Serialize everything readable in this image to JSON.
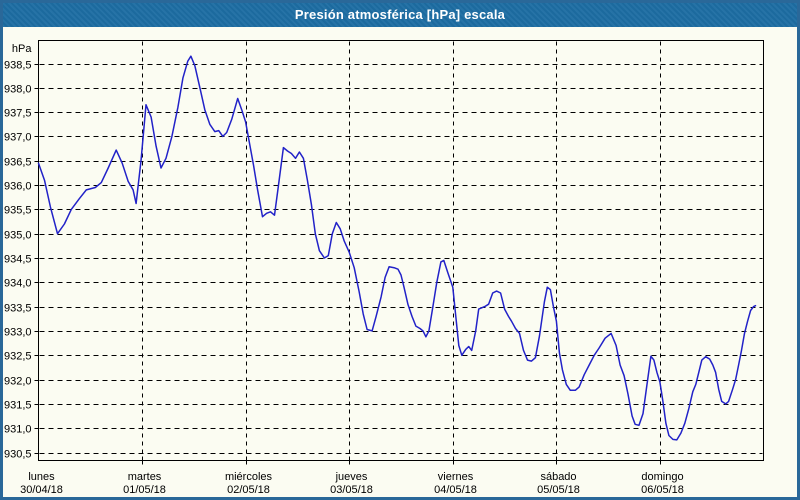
{
  "window": {
    "title": "Presión atmosférica [hPa] escala"
  },
  "colors": {
    "titlebar_bg": "#1D6DA3",
    "window_border": "#2A6899",
    "chart_bg": "#FBFCF2",
    "line": "#2222C8",
    "grid": "#000000",
    "text": "#000000",
    "title_text": "#FFFFFF"
  },
  "chart_data": {
    "type": "line",
    "title": "Presión atmosférica [hPa] escala",
    "y_unit_label": "hPa",
    "ylabel": "hPa",
    "xlabel": "",
    "grid": "dashed",
    "legend_position": "none",
    "ylim": [
      930.5,
      938.5
    ],
    "y_tick_step": 0.5,
    "y_ticks": [
      {
        "value": 938.5,
        "label": "938,5"
      },
      {
        "value": 938.0,
        "label": "938,0"
      },
      {
        "value": 937.5,
        "label": "937,5"
      },
      {
        "value": 937.0,
        "label": "937,0"
      },
      {
        "value": 936.5,
        "label": "936,5"
      },
      {
        "value": 936.0,
        "label": "936,0"
      },
      {
        "value": 935.5,
        "label": "935,5"
      },
      {
        "value": 935.0,
        "label": "935,0"
      },
      {
        "value": 934.5,
        "label": "934,5"
      },
      {
        "value": 934.0,
        "label": "934,0"
      },
      {
        "value": 933.5,
        "label": "933,5"
      },
      {
        "value": 933.0,
        "label": "933,0"
      },
      {
        "value": 932.5,
        "label": "932,5"
      },
      {
        "value": 932.0,
        "label": "932,0"
      },
      {
        "value": 931.5,
        "label": "931,5"
      },
      {
        "value": 931.0,
        "label": "931,0"
      },
      {
        "value": 930.5,
        "label": "930,5"
      }
    ],
    "x_days": [
      {
        "name": "lunes",
        "date": "30/04/18"
      },
      {
        "name": "martes",
        "date": "01/05/18"
      },
      {
        "name": "miércoles",
        "date": "02/05/18"
      },
      {
        "name": "jueves",
        "date": "03/05/18"
      },
      {
        "name": "viernes",
        "date": "04/05/18"
      },
      {
        "name": "sábado",
        "date": "05/05/18"
      },
      {
        "name": "domingo",
        "date": "06/05/18"
      }
    ],
    "x_span_days": 7,
    "series": [
      {
        "name": "Presión atmosférica",
        "unit": "hPa",
        "points": [
          [
            0.0,
            936.45
          ],
          [
            0.058,
            936.1
          ],
          [
            0.115,
            935.55
          ],
          [
            0.183,
            935.0
          ],
          [
            0.25,
            935.2
          ],
          [
            0.317,
            935.5
          ],
          [
            0.394,
            935.72
          ],
          [
            0.462,
            935.9
          ],
          [
            0.548,
            935.95
          ],
          [
            0.606,
            936.05
          ],
          [
            0.673,
            936.35
          ],
          [
            0.75,
            936.72
          ],
          [
            0.808,
            936.45
          ],
          [
            0.865,
            936.08
          ],
          [
            0.913,
            935.9
          ],
          [
            0.942,
            935.62
          ],
          [
            0.99,
            936.5
          ],
          [
            1.038,
            937.65
          ],
          [
            1.087,
            937.4
          ],
          [
            1.135,
            936.8
          ],
          [
            1.183,
            936.35
          ],
          [
            1.231,
            936.55
          ],
          [
            1.288,
            937.0
          ],
          [
            1.346,
            937.6
          ],
          [
            1.394,
            938.2
          ],
          [
            1.442,
            938.55
          ],
          [
            1.471,
            938.65
          ],
          [
            1.51,
            938.45
          ],
          [
            1.558,
            938.0
          ],
          [
            1.606,
            937.55
          ],
          [
            1.654,
            937.25
          ],
          [
            1.702,
            937.1
          ],
          [
            1.74,
            937.12
          ],
          [
            1.779,
            937.0
          ],
          [
            1.817,
            937.08
          ],
          [
            1.865,
            937.35
          ],
          [
            1.923,
            937.78
          ],
          [
            1.962,
            937.55
          ],
          [
            2.0,
            937.3
          ],
          [
            2.038,
            936.85
          ],
          [
            2.077,
            936.4
          ],
          [
            2.115,
            935.9
          ],
          [
            2.163,
            935.35
          ],
          [
            2.202,
            935.42
          ],
          [
            2.24,
            935.45
          ],
          [
            2.279,
            935.38
          ],
          [
            2.317,
            936.0
          ],
          [
            2.365,
            936.77
          ],
          [
            2.404,
            936.7
          ],
          [
            2.442,
            936.65
          ],
          [
            2.481,
            936.55
          ],
          [
            2.519,
            936.68
          ],
          [
            2.558,
            936.55
          ],
          [
            2.596,
            936.1
          ],
          [
            2.635,
            935.6
          ],
          [
            2.673,
            935.0
          ],
          [
            2.712,
            934.65
          ],
          [
            2.76,
            934.5
          ],
          [
            2.798,
            934.55
          ],
          [
            2.837,
            935.0
          ],
          [
            2.875,
            935.23
          ],
          [
            2.913,
            935.1
          ],
          [
            2.952,
            934.85
          ],
          [
            3.0,
            934.62
          ],
          [
            3.048,
            934.3
          ],
          [
            3.096,
            933.8
          ],
          [
            3.135,
            933.35
          ],
          [
            3.173,
            933.03
          ],
          [
            3.221,
            933.0
          ],
          [
            3.26,
            933.3
          ],
          [
            3.308,
            933.7
          ],
          [
            3.346,
            934.1
          ],
          [
            3.385,
            934.32
          ],
          [
            3.433,
            934.3
          ],
          [
            3.471,
            934.27
          ],
          [
            3.5,
            934.15
          ],
          [
            3.529,
            933.9
          ],
          [
            3.567,
            933.55
          ],
          [
            3.606,
            933.3
          ],
          [
            3.644,
            933.1
          ],
          [
            3.683,
            933.05
          ],
          [
            3.712,
            933.0
          ],
          [
            3.74,
            932.88
          ],
          [
            3.769,
            933.0
          ],
          [
            3.808,
            933.5
          ],
          [
            3.846,
            934.0
          ],
          [
            3.885,
            934.42
          ],
          [
            3.913,
            934.45
          ],
          [
            3.952,
            934.2
          ],
          [
            4.0,
            933.9
          ],
          [
            4.029,
            933.3
          ],
          [
            4.058,
            932.7
          ],
          [
            4.087,
            932.5
          ],
          [
            4.125,
            932.62
          ],
          [
            4.154,
            932.68
          ],
          [
            4.183,
            932.6
          ],
          [
            4.221,
            933.0
          ],
          [
            4.25,
            933.45
          ],
          [
            4.308,
            933.5
          ],
          [
            4.346,
            933.55
          ],
          [
            4.385,
            933.78
          ],
          [
            4.423,
            933.82
          ],
          [
            4.462,
            933.78
          ],
          [
            4.5,
            933.45
          ],
          [
            4.538,
            933.3
          ],
          [
            4.567,
            933.2
          ],
          [
            4.606,
            933.05
          ],
          [
            4.644,
            932.95
          ],
          [
            4.683,
            932.6
          ],
          [
            4.721,
            932.4
          ],
          [
            4.76,
            932.38
          ],
          [
            4.798,
            932.45
          ],
          [
            4.837,
            932.9
          ],
          [
            4.885,
            933.6
          ],
          [
            4.913,
            933.9
          ],
          [
            4.942,
            933.85
          ],
          [
            4.971,
            933.5
          ],
          [
            5.0,
            933.2
          ],
          [
            5.029,
            932.55
          ],
          [
            5.058,
            932.2
          ],
          [
            5.096,
            931.9
          ],
          [
            5.135,
            931.78
          ],
          [
            5.183,
            931.78
          ],
          [
            5.221,
            931.85
          ],
          [
            5.269,
            932.1
          ],
          [
            5.317,
            932.3
          ],
          [
            5.365,
            932.5
          ],
          [
            5.413,
            932.65
          ],
          [
            5.471,
            932.85
          ],
          [
            5.529,
            932.95
          ],
          [
            5.577,
            932.7
          ],
          [
            5.615,
            932.3
          ],
          [
            5.654,
            932.08
          ],
          [
            5.692,
            931.7
          ],
          [
            5.731,
            931.25
          ],
          [
            5.76,
            931.08
          ],
          [
            5.798,
            931.06
          ],
          [
            5.837,
            931.3
          ],
          [
            5.875,
            931.9
          ],
          [
            5.913,
            932.48
          ],
          [
            5.942,
            932.4
          ],
          [
            5.971,
            932.15
          ],
          [
            6.0,
            931.95
          ],
          [
            6.029,
            931.55
          ],
          [
            6.058,
            931.1
          ],
          [
            6.087,
            930.85
          ],
          [
            6.125,
            930.77
          ],
          [
            6.163,
            930.76
          ],
          [
            6.202,
            930.9
          ],
          [
            6.24,
            931.1
          ],
          [
            6.279,
            931.4
          ],
          [
            6.317,
            931.75
          ],
          [
            6.346,
            931.9
          ],
          [
            6.375,
            932.15
          ],
          [
            6.404,
            932.4
          ],
          [
            6.442,
            932.47
          ],
          [
            6.481,
            932.42
          ],
          [
            6.51,
            932.3
          ],
          [
            6.538,
            932.15
          ],
          [
            6.567,
            931.8
          ],
          [
            6.596,
            931.55
          ],
          [
            6.635,
            931.5
          ],
          [
            6.663,
            931.55
          ],
          [
            6.702,
            931.8
          ],
          [
            6.731,
            932.0
          ],
          [
            6.76,
            932.3
          ],
          [
            6.788,
            932.6
          ],
          [
            6.817,
            932.95
          ],
          [
            6.846,
            933.2
          ],
          [
            6.875,
            933.42
          ],
          [
            6.904,
            933.5
          ],
          [
            6.923,
            933.52
          ]
        ]
      }
    ]
  }
}
